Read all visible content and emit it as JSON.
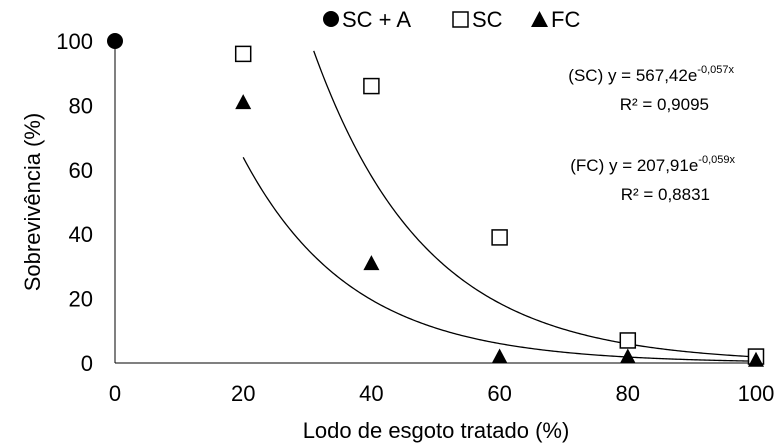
{
  "chart_data": {
    "type": "scatter",
    "xlabel": "Lodo de esgoto tratado (%)",
    "ylabel": "Sobrevivência (%)",
    "xlim": [
      0,
      100
    ],
    "ylim": [
      0,
      100
    ],
    "x_ticks": [
      "0",
      "20",
      "40",
      "60",
      "80",
      "100"
    ],
    "y_ticks": [
      "0",
      "20",
      "40",
      "60",
      "80",
      "100"
    ],
    "grid": false,
    "legend_position": "top-center",
    "legend": [
      {
        "symbol": "●",
        "label": "SC + A"
      },
      {
        "symbol": "□",
        "label": "SC"
      },
      {
        "symbol": "▲",
        "label": "FC"
      }
    ],
    "series": [
      {
        "name": "SC + A",
        "marker": "circle-filled",
        "points": [
          [
            0,
            100
          ]
        ]
      },
      {
        "name": "SC",
        "marker": "square-open",
        "points": [
          [
            20,
            96
          ],
          [
            40,
            86
          ],
          [
            60,
            39
          ],
          [
            80,
            7
          ],
          [
            100,
            2
          ]
        ]
      },
      {
        "name": "FC",
        "marker": "triangle-filled",
        "points": [
          [
            20,
            81
          ],
          [
            40,
            31
          ],
          [
            60,
            2
          ],
          [
            80,
            2
          ],
          [
            100,
            1
          ]
        ]
      }
    ],
    "trendlines": [
      {
        "series": "SC",
        "a": 567.42,
        "b": -0.057,
        "x_range": [
          31,
          100
        ],
        "label_prefix": "(SC) y = 567,42e",
        "label_exp": "-0,057x",
        "r2": "R² = 0,9095"
      },
      {
        "series": "FC",
        "a": 207.91,
        "b": -0.059,
        "x_range": [
          20,
          100
        ],
        "label_prefix": "(FC) y = 207,91e",
        "label_exp": "-0,059x",
        "r2": "R² = 0,8831"
      }
    ]
  }
}
